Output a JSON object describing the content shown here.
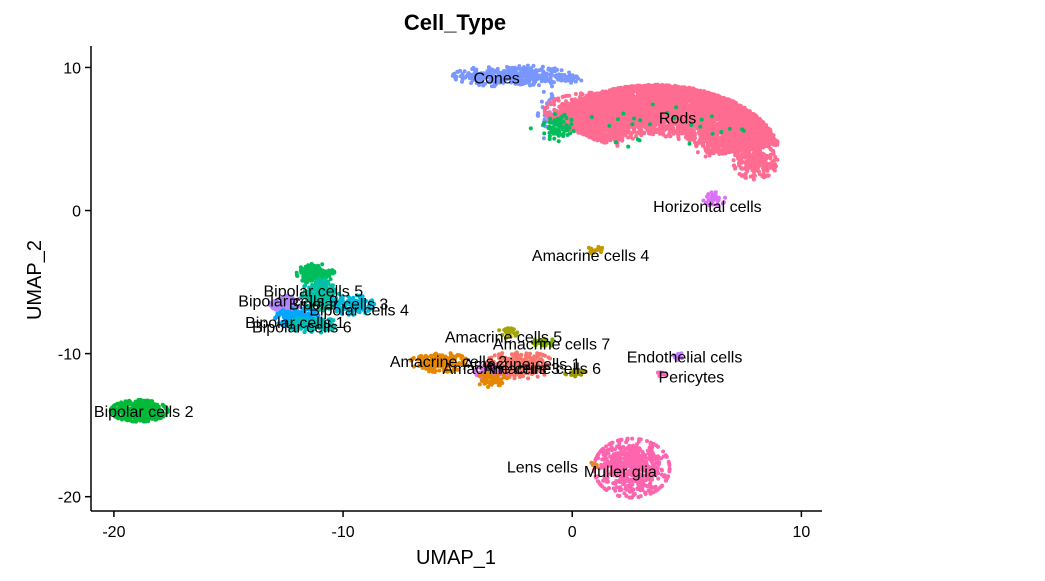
{
  "chart_data": {
    "type": "scatter",
    "title": "Cell_Type",
    "xlabel": "UMAP_1",
    "ylabel": "UMAP_2",
    "xlim": [
      -21,
      10.9
    ],
    "ylim": [
      -21,
      11.5
    ],
    "xticks": [
      -20,
      -10,
      0,
      10
    ],
    "yticks": [
      -20,
      -10,
      0,
      10
    ],
    "grid": false,
    "legend": "none",
    "clusters": [
      {
        "name": "Rods",
        "color": "#FF6C91"
      },
      {
        "name": "Cones",
        "color": "#7997FF"
      },
      {
        "name": "Horizontal cells",
        "color": "#DC71FA"
      },
      {
        "name": "Amacrine cells 4",
        "color": "#C49A00"
      },
      {
        "name": "Bipolar cells 5",
        "color": "#00C1A3"
      },
      {
        "name": "Bipolar cells 9",
        "color": "#B385FF"
      },
      {
        "name": "Bipolar cells 3",
        "color": "#00BD5C"
      },
      {
        "name": "Bipolar cells 4",
        "color": "#00BADE"
      },
      {
        "name": "Bipolar cells 1",
        "color": "#00A6FF"
      },
      {
        "name": "Bipolar cells 6",
        "color": "#00C0B8"
      },
      {
        "name": "Bipolar cells 2",
        "color": "#00BA38"
      },
      {
        "name": "Amacrine cells 5",
        "color": "#A3A500"
      },
      {
        "name": "Amacrine cells 7",
        "color": "#7CAE00"
      },
      {
        "name": "Amacrine cells 2",
        "color": "#E58700"
      },
      {
        "name": "Amacrine cells 1",
        "color": "#F8766D"
      },
      {
        "name": "Amacrine cells 3",
        "color": "#E76BF3"
      },
      {
        "name": "Amacrine cells 6",
        "color": "#9A9600"
      },
      {
        "name": "Endothelial cells",
        "color": "#C77CFF"
      },
      {
        "name": "Pericytes",
        "color": "#FF61C3"
      },
      {
        "name": "Lens cells",
        "color": "#E88526"
      },
      {
        "name": "Muller glia",
        "color": "#FF65AE"
      }
    ],
    "labels": [
      {
        "text": "Cones",
        "x": -3.3,
        "y": 9.3
      },
      {
        "text": "Rods",
        "x": 4.6,
        "y": 6.5
      },
      {
        "text": "Horizontal cells",
        "x": 5.9,
        "y": 0.3
      },
      {
        "text": "Amacrine cells 4",
        "x": 0.8,
        "y": -3.1
      },
      {
        "text": "Bipolar cells 5",
        "x": -11.3,
        "y": -5.6
      },
      {
        "text": "Bipolar cells 9",
        "x": -12.4,
        "y": -6.3
      },
      {
        "text": "Bipolar cells 3",
        "x": -10.2,
        "y": -6.5
      },
      {
        "text": "Bipolar cells 4",
        "x": -9.3,
        "y": -6.9
      },
      {
        "text": "Bipolar cells 1",
        "x": -12.1,
        "y": -7.8
      },
      {
        "text": "Bipolar cells 6",
        "x": -11.8,
        "y": -8.1
      },
      {
        "text": "Bipolar cells 2",
        "x": -18.7,
        "y": -14.0
      },
      {
        "text": "Amacrine cells 5",
        "x": -3.0,
        "y": -8.8
      },
      {
        "text": "Amacrine cells 7",
        "x": -0.9,
        "y": -9.3
      },
      {
        "text": "Amacrine cells 2",
        "x": -5.4,
        "y": -10.5
      },
      {
        "text": "Amacrine cells 1",
        "x": -2.2,
        "y": -10.7
      },
      {
        "text": "Amacrine cells 3",
        "x": -3.1,
        "y": -11.0
      },
      {
        "text": "Amacrine cells 6",
        "x": -1.3,
        "y": -11.0
      },
      {
        "text": "Endothelial cells",
        "x": 4.9,
        "y": -10.2
      },
      {
        "text": "Pericytes",
        "x": 5.2,
        "y": -11.6
      },
      {
        "text": "Lens cells",
        "x": -1.3,
        "y": -17.9
      },
      {
        "text": "Muller glia",
        "x": 2.1,
        "y": -18.2
      }
    ],
    "blobs": [
      {
        "cluster": "Cones",
        "shape": "ellipse",
        "cx": -2.6,
        "cy": 9.4,
        "rx": 1.9,
        "ry": 0.55,
        "n": 360
      },
      {
        "cluster": "Cones",
        "shape": "ellipse",
        "cx": -0.3,
        "cy": 9.2,
        "rx": 0.6,
        "ry": 0.2,
        "n": 40
      },
      {
        "cluster": "Cones",
        "shape": "ellipse",
        "cx": -1.1,
        "cy": 7.0,
        "rx": 0.3,
        "ry": 1.5,
        "n": 30
      },
      {
        "cluster": "Rods",
        "shape": "arc",
        "cx": 3.6,
        "cy": 3.2,
        "rin": 2.0,
        "rout": 5.6,
        "sx": 1.0,
        "sy": 1.0,
        "a0": 0.25,
        "a1": 2.55,
        "n": 5200
      },
      {
        "cluster": "Rods",
        "shape": "ellipse",
        "cx": 1.0,
        "cy": 7.0,
        "rx": 1.6,
        "ry": 0.9,
        "n": 500
      },
      {
        "cluster": "Rods",
        "shape": "ellipse",
        "cx": 8.0,
        "cy": 3.4,
        "rx": 0.7,
        "ry": 0.9,
        "n": 260
      },
      {
        "cluster": "Bipolar cells 3",
        "shape": "ellipse",
        "cx": -0.6,
        "cy": 5.8,
        "rx": 0.5,
        "ry": 0.7,
        "n": 70
      },
      {
        "cluster": "Bipolar cells 3",
        "shape": "ellipse",
        "cx": 3.0,
        "cy": 5.8,
        "rx": 3.5,
        "ry": 1.2,
        "n": 28
      },
      {
        "cluster": "Horizontal cells",
        "shape": "ellipse",
        "cx": 6.2,
        "cy": 0.8,
        "rx": 0.35,
        "ry": 0.35,
        "n": 35
      },
      {
        "cluster": "Amacrine cells 4",
        "shape": "ellipse",
        "cx": 1.0,
        "cy": -2.8,
        "rx": 0.3,
        "ry": 0.2,
        "n": 20
      },
      {
        "cluster": "Bipolar cells 3",
        "shape": "ellipse",
        "cx": -11.2,
        "cy": -4.4,
        "rx": 0.6,
        "ry": 0.5,
        "n": 180
      },
      {
        "cluster": "Bipolar cells 5",
        "shape": "ellipse",
        "cx": -11.0,
        "cy": -5.9,
        "rx": 0.6,
        "ry": 0.8,
        "n": 200
      },
      {
        "cluster": "Bipolar cells 9",
        "shape": "ellipse",
        "cx": -12.5,
        "cy": -6.5,
        "rx": 0.5,
        "ry": 0.4,
        "n": 120
      },
      {
        "cluster": "Bipolar cells 4",
        "shape": "ellipse",
        "cx": -9.6,
        "cy": -6.6,
        "rx": 0.7,
        "ry": 0.5,
        "n": 160
      },
      {
        "cluster": "Bipolar cells 1",
        "shape": "ellipse",
        "cx": -12.0,
        "cy": -7.5,
        "rx": 0.7,
        "ry": 0.5,
        "n": 180
      },
      {
        "cluster": "Bipolar cells 6",
        "shape": "ellipse",
        "cx": -11.3,
        "cy": -8.0,
        "rx": 0.8,
        "ry": 0.4,
        "n": 180
      },
      {
        "cluster": "Bipolar cells 2",
        "shape": "ellipse",
        "cx": -18.9,
        "cy": -14.0,
        "rx": 0.9,
        "ry": 0.55,
        "n": 450
      },
      {
        "cluster": "Amacrine cells 5",
        "shape": "ellipse",
        "cx": -2.8,
        "cy": -8.5,
        "rx": 0.3,
        "ry": 0.3,
        "n": 35
      },
      {
        "cluster": "Amacrine cells 7",
        "shape": "ellipse",
        "cx": -1.3,
        "cy": -9.2,
        "rx": 0.4,
        "ry": 0.25,
        "n": 25
      },
      {
        "cluster": "Amacrine cells 2",
        "shape": "ellipse",
        "cx": -5.8,
        "cy": -10.6,
        "rx": 0.9,
        "ry": 0.5,
        "n": 200
      },
      {
        "cluster": "Amacrine cells 1",
        "shape": "ellipse",
        "cx": -2.3,
        "cy": -10.8,
        "rx": 1.1,
        "ry": 0.7,
        "n": 260
      },
      {
        "cluster": "Amacrine cells 3",
        "shape": "ellipse",
        "cx": -3.5,
        "cy": -11.3,
        "rx": 0.6,
        "ry": 0.4,
        "n": 60
      },
      {
        "cluster": "Amacrine cells 2",
        "shape": "ellipse",
        "cx": -3.5,
        "cy": -11.8,
        "rx": 0.5,
        "ry": 0.4,
        "n": 60
      },
      {
        "cluster": "Amacrine cells 6",
        "shape": "ellipse",
        "cx": 0.2,
        "cy": -11.4,
        "rx": 0.4,
        "ry": 0.2,
        "n": 25
      },
      {
        "cluster": "Endothelial cells",
        "shape": "ellipse",
        "cx": 4.6,
        "cy": -10.2,
        "rx": 0.2,
        "ry": 0.2,
        "n": 14
      },
      {
        "cluster": "Pericytes",
        "shape": "ellipse",
        "cx": 3.9,
        "cy": -11.4,
        "rx": 0.15,
        "ry": 0.15,
        "n": 10
      },
      {
        "cluster": "Lens cells",
        "shape": "ellipse",
        "cx": 0.9,
        "cy": -17.8,
        "rx": 0.2,
        "ry": 0.15,
        "n": 8
      },
      {
        "cluster": "Muller glia",
        "shape": "ellipse",
        "cx": 2.6,
        "cy": -18.0,
        "rx": 1.2,
        "ry": 1.5,
        "n": 600
      }
    ]
  }
}
